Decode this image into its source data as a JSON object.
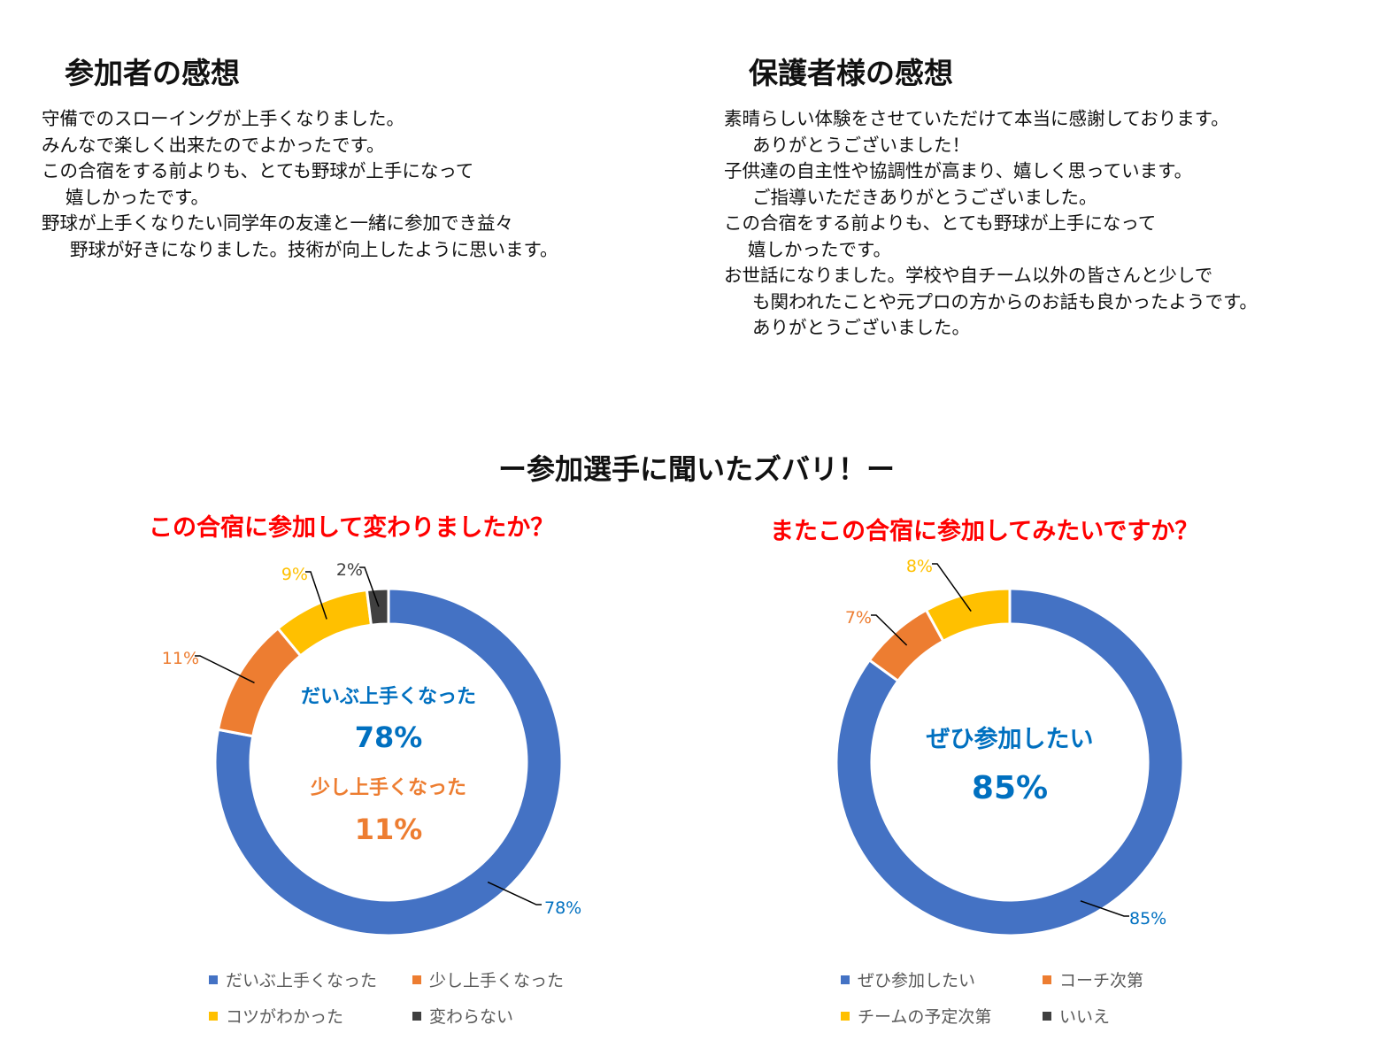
{
  "participants": {
    "heading": "参加者の感想",
    "lines": [
      "守備でのスローイングが上手くなりました。",
      "みんなで楽しく出来たのでよかったです。",
      "この合宿をする前よりも、とても野球が上手になって",
      "嬉しかったです。",
      "野球が上手くなりたい同学年の友達と一緒に参加でき益々",
      "野球が好きになりました。技術が向上したように思います。"
    ]
  },
  "guardians": {
    "heading": "保護者様の感想",
    "lines": [
      "素晴らしい体験をさせていただけて本当に感謝しております。",
      "ありがとうございました！",
      "子供達の自主性や協調性が高まり、嬉しく思っています。",
      "ご指導いただきありがとうございました。",
      "この合宿をする前よりも、とても野球が上手になって",
      "嬉しかったです。",
      "お世話になりました。学校や自チーム以外の皆さんと少しで",
      "も関われたことや元プロの方からのお話も良かったようです。",
      "ありがとうございました。"
    ]
  },
  "survey_title": "ー参加選手に聞いたズバリ！ー",
  "colors": {
    "blue": "#4472c4",
    "orange": "#ed7d31",
    "yellow": "#ffc000",
    "dark": "#404040",
    "question": "#ff0000"
  },
  "chart_data": [
    {
      "type": "pie",
      "style": "donut",
      "title": "この合宿に参加して変わりましたか？",
      "categories": [
        "だいぶ上手くなった",
        "少し上手くなった",
        "コツがわかった",
        "変わらない"
      ],
      "values": [
        78,
        11,
        9,
        2
      ],
      "data_labels": [
        "78%",
        "11%",
        "9%",
        "2%"
      ],
      "colors": [
        "#4472c4",
        "#ed7d31",
        "#ffc000",
        "#404040"
      ],
      "center_text": [
        {
          "label": "だいぶ上手くなった",
          "value": "78%",
          "color": "#0070c0"
        },
        {
          "label": "少し上手くなった",
          "value": "11%",
          "color": "#ed7d31"
        }
      ],
      "legend_position": "bottom"
    },
    {
      "type": "pie",
      "style": "donut",
      "title": "またこの合宿に参加してみたいですか？",
      "categories": [
        "ぜひ参加したい",
        "コーチ次第",
        "チームの予定次第",
        "いいえ"
      ],
      "values": [
        85,
        7,
        8,
        0
      ],
      "data_labels": [
        "85%",
        "7%",
        "8%",
        ""
      ],
      "colors": [
        "#4472c4",
        "#ed7d31",
        "#ffc000",
        "#404040"
      ],
      "center_text": [
        {
          "label": "ぜひ参加したい",
          "value": "85%",
          "color": "#0070c0"
        }
      ],
      "legend_position": "bottom"
    }
  ]
}
